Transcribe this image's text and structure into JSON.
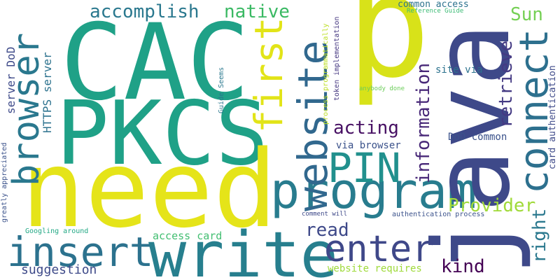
{
  "words": [
    {
      "text": "CAC",
      "color": "#1fa187"
    },
    {
      "text": "PKCS",
      "color": "#1fa187"
    },
    {
      "text": "need",
      "color": "#e5e419"
    },
    {
      "text": "write",
      "color": "#277f8e"
    },
    {
      "text": "program",
      "color": "#287c8e"
    },
    {
      "text": "p",
      "color": "#d8e219"
    },
    {
      "text": "java",
      "color": "#3e4989"
    },
    {
      "text": "browser",
      "color": "#2a788e"
    },
    {
      "text": "first",
      "color": "#e2e418"
    },
    {
      "text": "website",
      "color": "#31688e"
    },
    {
      "text": "connect",
      "color": "#2d708e"
    },
    {
      "text": "insert",
      "color": "#2c728e"
    },
    {
      "text": "enter",
      "color": "#3f4889"
    },
    {
      "text": "PIN",
      "color": "#21908d"
    },
    {
      "text": "accomplish",
      "color": "#2a788e"
    },
    {
      "text": "native",
      "color": "#3ab963"
    },
    {
      "text": "acting",
      "color": "#471063"
    },
    {
      "text": "information",
      "color": "#482878"
    },
    {
      "text": "retrieve",
      "color": "#443a83"
    },
    {
      "text": "Sun",
      "color": "#75d054"
    },
    {
      "text": "right",
      "color": "#2a788e"
    },
    {
      "text": "Provider",
      "color": "#a0da39"
    },
    {
      "text": "read",
      "color": "#3e4989"
    },
    {
      "text": "kind",
      "color": "#440154"
    },
    {
      "text": "suggestion",
      "color": "#3e4a89"
    },
    {
      "text": "server DoD",
      "color": "#3e4a89"
    },
    {
      "text": "HTTPS server",
      "color": "#2c728e"
    },
    {
      "text": "via browser",
      "color": "#3b528b"
    },
    {
      "text": "DoD common",
      "color": "#3b528b"
    },
    {
      "text": "site via",
      "color": "#2c728e"
    },
    {
      "text": "card authentication",
      "color": "#3e4a89"
    },
    {
      "text": "access card",
      "color": "#42be71"
    },
    {
      "text": "website requires",
      "color": "#9fda3a"
    },
    {
      "text": "common access",
      "color": "#2c728e"
    },
    {
      "text": "Reference Guide",
      "color": "#3bbb75"
    },
    {
      "text": "token implementation",
      "color": "#453781"
    },
    {
      "text": "process programmatically",
      "color": "#bddf26"
    },
    {
      "text": "Guide Seems",
      "color": "#2a788e"
    },
    {
      "text": "anybody done",
      "color": "#6ccd5a"
    },
    {
      "text": "greatly appreciated",
      "color": "#3b528b"
    },
    {
      "text": "Googling around",
      "color": "#22a884"
    },
    {
      "text": "comment will",
      "color": "#3e4989"
    },
    {
      "text": "authentication process",
      "color": "#3b528b"
    }
  ]
}
